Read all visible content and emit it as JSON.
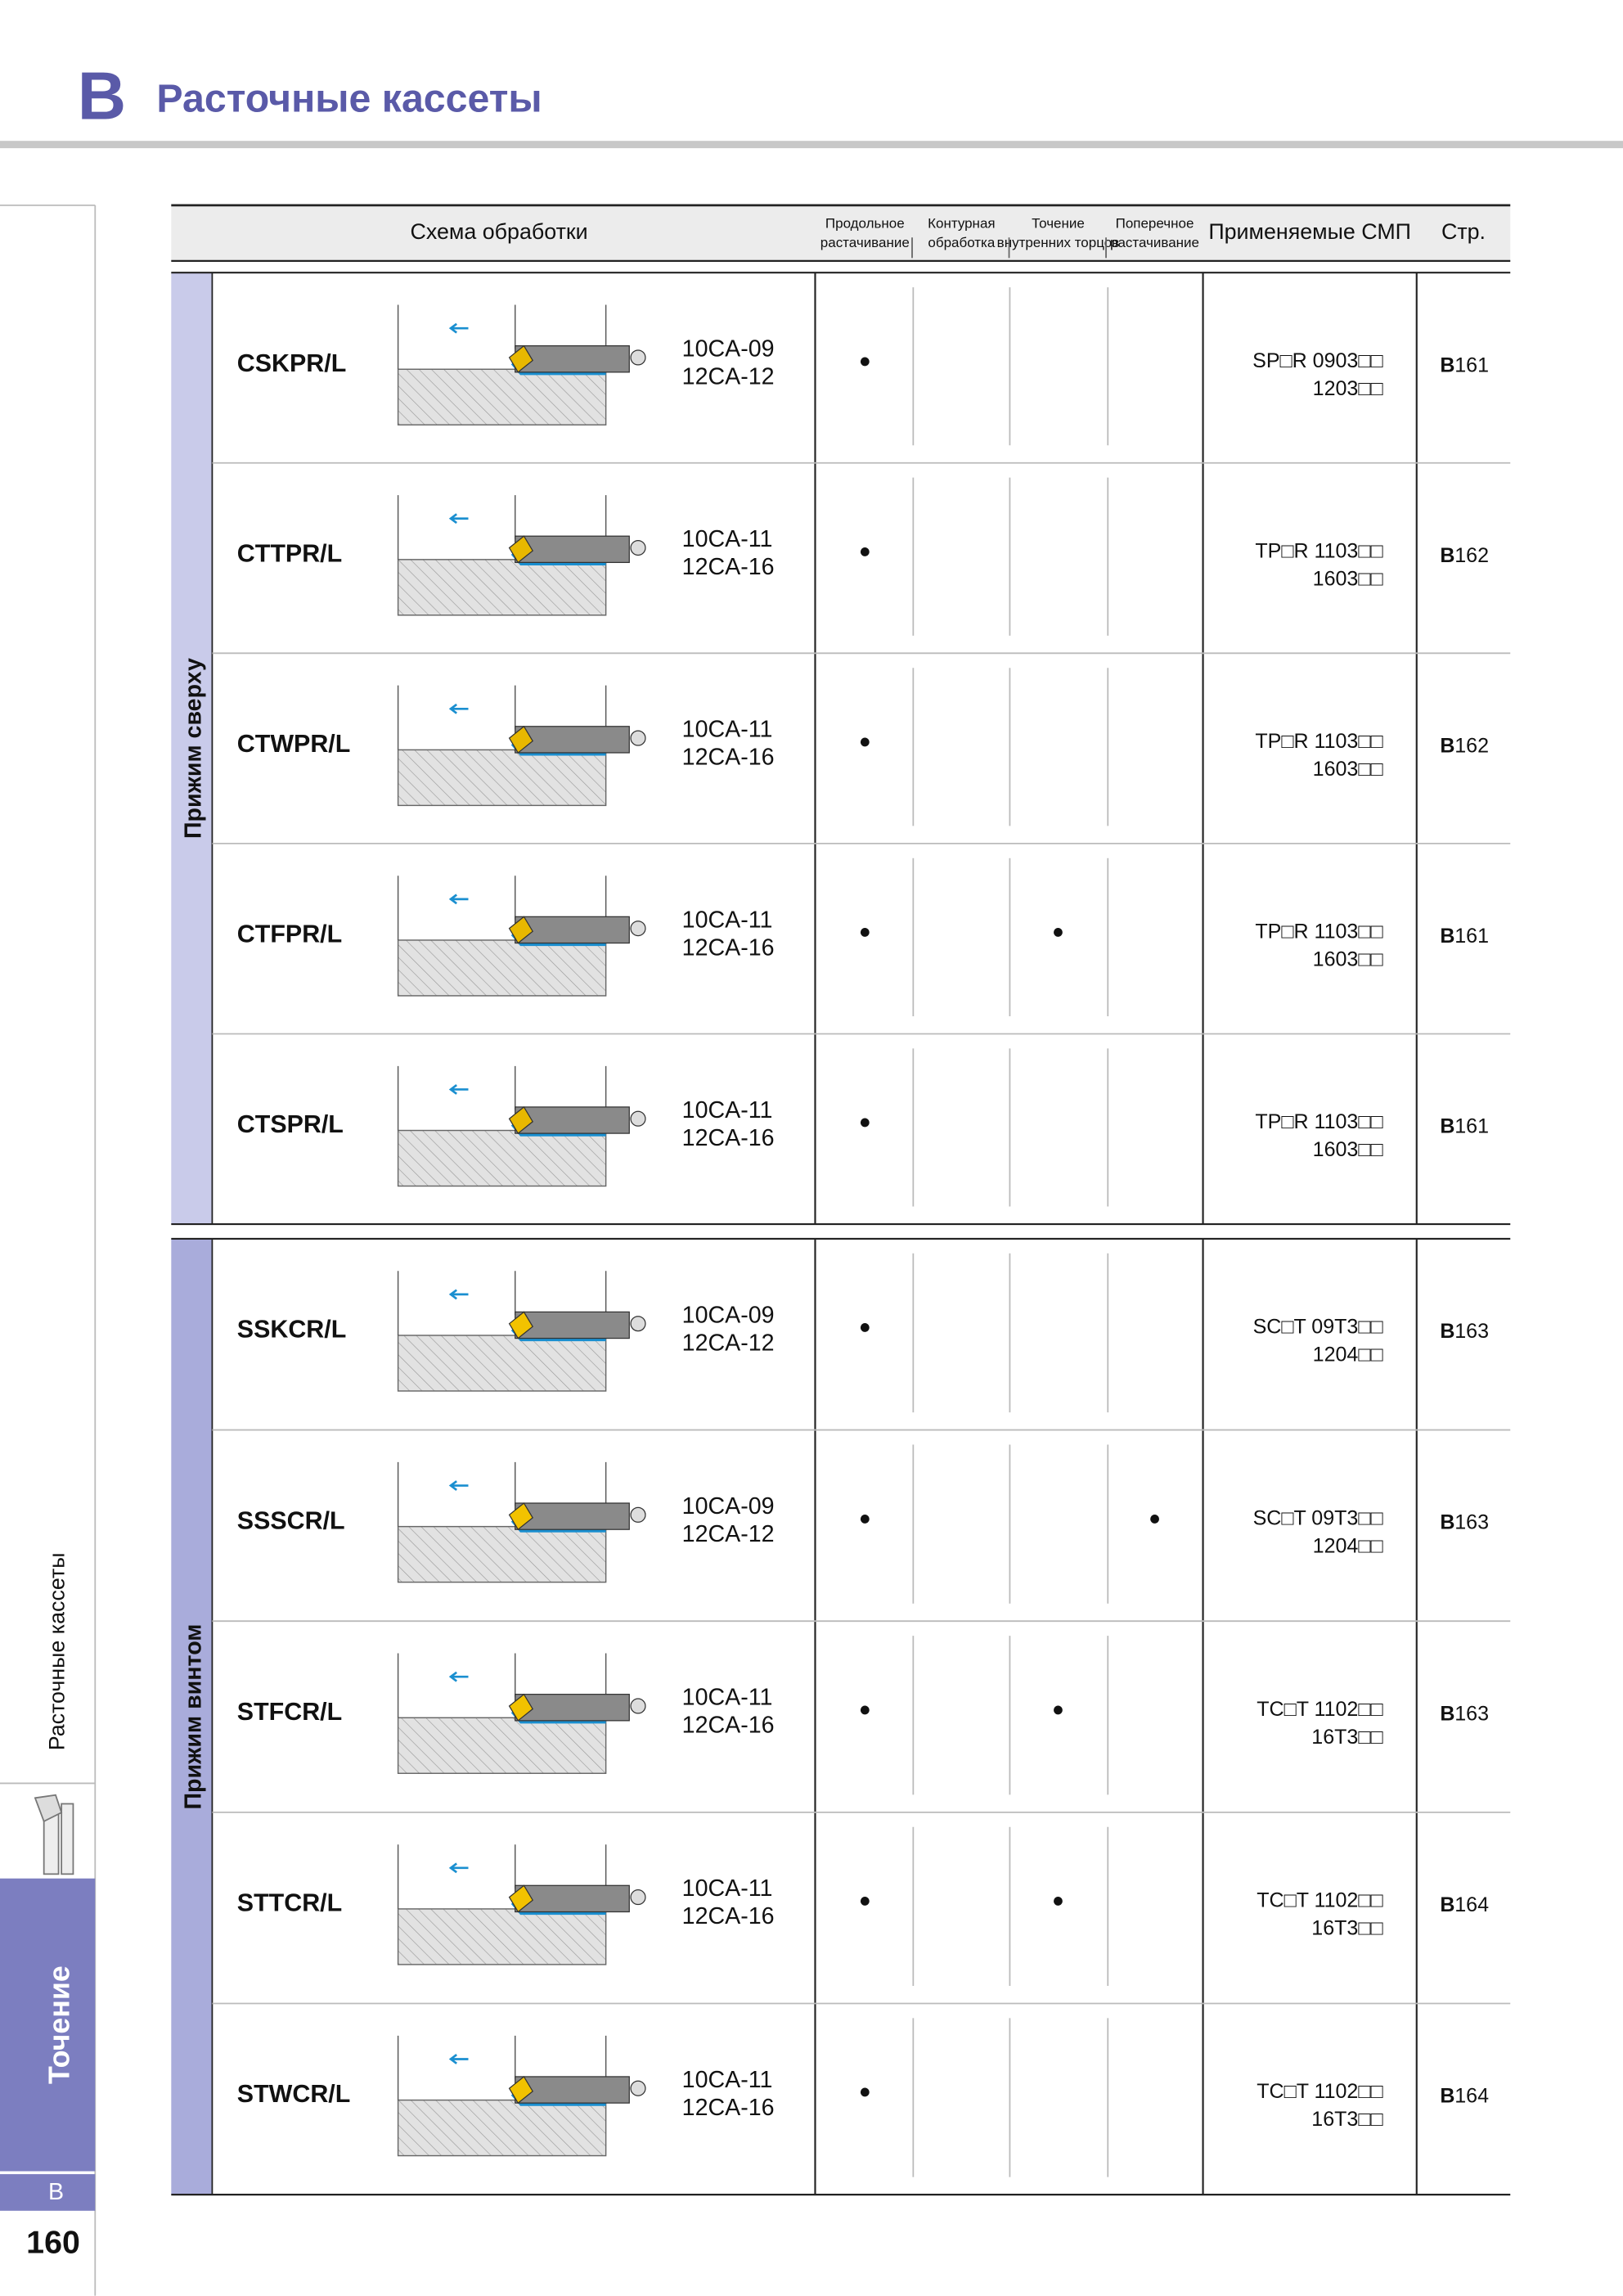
{
  "header": {
    "letter": "B",
    "title": "Расточные кассеты"
  },
  "table": {
    "headers": [
      "Схема обработки",
      [
        "Продольное",
        "растачивание"
      ],
      [
        "Контурная",
        "обработка"
      ],
      [
        "Точение",
        "внутренних торцов"
      ],
      [
        "Поперечное",
        "растачивание"
      ],
      "Применяемые СМП",
      "Стр."
    ],
    "groups": [
      {
        "label": "Прижим сверху",
        "rows": [
          {
            "code": "CSKPR/L",
            "cassettes": [
              "10CA-09",
              "12CA-12"
            ],
            "marks": [
              "●",
              null,
              null,
              null
            ],
            "inserts": [
              "SP□R  0903□□",
              "1203□□"
            ],
            "page": {
              "letter": "B",
              "number": "161"
            }
          },
          {
            "code": "CTTPR/L",
            "cassettes": [
              "10CA-11",
              "12CA-16"
            ],
            "marks": [
              "●",
              null,
              null,
              null
            ],
            "inserts": [
              "TP□R  1103□□",
              "1603□□"
            ],
            "page": {
              "letter": "B",
              "number": "162"
            }
          },
          {
            "code": "CTWPR/L",
            "cassettes": [
              "10CA-11",
              "12CA-16"
            ],
            "marks": [
              "●",
              null,
              null,
              null
            ],
            "inserts": [
              "TP□R  1103□□",
              "1603□□"
            ],
            "page": {
              "letter": "B",
              "number": "162"
            }
          },
          {
            "code": "CTFPR/L",
            "cassettes": [
              "10CA-11",
              "12CA-16"
            ],
            "marks": [
              "●",
              null,
              "●",
              null
            ],
            "inserts": [
              "TP□R  1103□□",
              "1603□□"
            ],
            "page": {
              "letter": "B",
              "number": "161"
            }
          },
          {
            "code": "CTSPR/L",
            "cassettes": [
              "10CA-11",
              "12CA-16"
            ],
            "marks": [
              "●",
              null,
              null,
              null
            ],
            "inserts": [
              "TP□R  1103□□",
              "1603□□"
            ],
            "page": {
              "letter": "B",
              "number": "161"
            }
          }
        ]
      },
      {
        "label": "Прижим винтом",
        "rows": [
          {
            "code": "SSKCR/L",
            "cassettes": [
              "10CA-09",
              "12CA-12"
            ],
            "marks": [
              "●",
              null,
              null,
              null
            ],
            "inserts": [
              "SC□T  09T3□□",
              "1204□□"
            ],
            "page": {
              "letter": "B",
              "number": "163"
            }
          },
          {
            "code": "SSSCR/L",
            "cassettes": [
              "10CA-09",
              "12CA-12"
            ],
            "marks": [
              "●",
              null,
              null,
              "●"
            ],
            "inserts": [
              "SC□T  09T3□□",
              "1204□□"
            ],
            "page": {
              "letter": "B",
              "number": "163"
            }
          },
          {
            "code": "STFCR/L",
            "cassettes": [
              "10CA-11",
              "12CA-16"
            ],
            "marks": [
              "●",
              null,
              "●",
              null
            ],
            "inserts": [
              "TC□T  1102□□",
              "16T3□□"
            ],
            "page": {
              "letter": "B",
              "number": "163"
            }
          },
          {
            "code": "STTCR/L",
            "cassettes": [
              "10CA-11",
              "12CA-16"
            ],
            "marks": [
              "●",
              null,
              "●",
              null
            ],
            "inserts": [
              "TC□T  1102□□",
              "16T3□□"
            ],
            "page": {
              "letter": "B",
              "number": "164"
            }
          },
          {
            "code": "STWCR/L",
            "cassettes": [
              "10CA-11",
              "12CA-16"
            ],
            "marks": [
              "●",
              null,
              null,
              null
            ],
            "inserts": [
              "TC□T  1102□□",
              "16T3□□"
            ],
            "page": {
              "letter": "B",
              "number": "164"
            }
          }
        ]
      }
    ]
  },
  "sidebar": {
    "section": "Расточные кассеты",
    "tab": "Точение",
    "tab_letter": "B",
    "page_number": "160"
  }
}
